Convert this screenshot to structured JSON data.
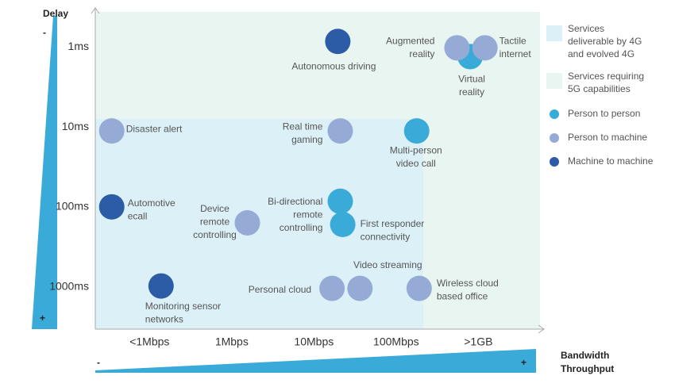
{
  "chart_data": {
    "type": "scatter",
    "y_label": "Delay",
    "y_low": "-",
    "y_high": "+",
    "x_label": [
      "Bandwidth",
      "Throughput"
    ],
    "x_low": "-",
    "x_high": "+",
    "xlim": [
      -0.66,
      4.75
    ],
    "ylim": [
      -0.44,
      3.53
    ],
    "xticks": [
      {
        "value": 0,
        "label": "<1Mbps"
      },
      {
        "value": 1,
        "label": "1Mbps"
      },
      {
        "value": 2,
        "label": "10Mbps"
      },
      {
        "value": 3,
        "label": "100Mbps"
      },
      {
        "value": 4,
        "label": ">1GB"
      }
    ],
    "yticks": [
      {
        "value": 0,
        "label": "1ms"
      },
      {
        "value": 1,
        "label": "10ms"
      },
      {
        "value": 2,
        "label": "100ms"
      },
      {
        "value": 3,
        "label": "1000ms"
      }
    ],
    "regions": [
      {
        "label": [
          "Services",
          "deliverable by 4G",
          "and evolved 4G"
        ],
        "color": "#dcf0f8"
      },
      {
        "label": [
          "Services requiring",
          "5G capabilities"
        ],
        "color": "#e9f5f1"
      }
    ],
    "series": [
      {
        "name": "Person to person",
        "color": "#3aaad9",
        "points": [
          {
            "label": [
              "Virtual",
              "reality"
            ],
            "x": 3.9,
            "y": 0.12
          },
          {
            "label": [
              "Multi-person",
              "video call"
            ],
            "x": 3.25,
            "y": 1.05
          },
          {
            "label": [
              "Bi-directional",
              "remote",
              "controlling"
            ],
            "x": 2.32,
            "y": 1.93
          },
          {
            "label": [
              "First responder",
              "connectivity"
            ],
            "x": 2.35,
            "y": 2.22
          }
        ]
      },
      {
        "name": "Person to machine",
        "color": "#95abd6",
        "points": [
          {
            "label": [
              "Augmented",
              "reality"
            ],
            "x": 3.74,
            "y": 0.01
          },
          {
            "label": [
              "Tactile",
              "internet"
            ],
            "x": 4.08,
            "y": 0.01
          },
          {
            "label": [
              "Disaster alert"
            ],
            "x": -0.46,
            "y": 1.05
          },
          {
            "label": [
              "Real time",
              "gaming"
            ],
            "x": 2.32,
            "y": 1.05
          },
          {
            "label": [
              "Device",
              "remote",
              "controlling"
            ],
            "x": 1.19,
            "y": 2.2
          },
          {
            "label": [
              "Personal cloud"
            ],
            "x": 2.22,
            "y": 3.02
          },
          {
            "label": [
              "Video streaming"
            ],
            "x": 2.56,
            "y": 3.02
          },
          {
            "label": [
              "Wireless cloud",
              "based office"
            ],
            "x": 3.28,
            "y": 3.02
          }
        ]
      },
      {
        "name": "Machine to machine",
        "color": "#2c5ca5",
        "points": [
          {
            "label": [
              "Autonomous driving"
            ],
            "x": 2.29,
            "y": -0.07
          },
          {
            "label": [
              "Automotive",
              "ecall"
            ],
            "x": -0.46,
            "y": 2.0
          },
          {
            "label": [
              "Monitoring sensor",
              "networks"
            ],
            "x": 0.14,
            "y": 2.99
          }
        ]
      }
    ]
  }
}
